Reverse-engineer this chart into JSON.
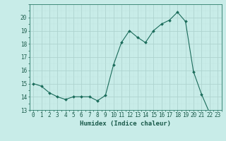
{
  "x": [
    0,
    1,
    2,
    3,
    4,
    5,
    6,
    7,
    8,
    9,
    10,
    11,
    12,
    13,
    14,
    15,
    16,
    17,
    18,
    19,
    20,
    21,
    22,
    23
  ],
  "y": [
    15.0,
    14.8,
    14.3,
    14.0,
    13.8,
    14.0,
    14.0,
    14.0,
    13.7,
    14.1,
    16.4,
    18.1,
    19.0,
    18.5,
    18.1,
    19.0,
    19.5,
    19.8,
    20.4,
    19.7,
    15.9,
    14.2,
    12.8,
    12.8
  ],
  "line_color": "#1a6b5a",
  "marker": "D",
  "marker_size": 2.0,
  "bg_color": "#c8ece8",
  "grid_major_color": "#aed4cf",
  "grid_minor_color": "#c0e4e0",
  "axis_color": "#2a7a68",
  "tick_color": "#1a5a4a",
  "xlabel": "Humidex (Indice chaleur)",
  "ylim": [
    13,
    21
  ],
  "yticks": [
    13,
    14,
    15,
    16,
    17,
    18,
    19,
    20
  ],
  "xlim": [
    -0.5,
    23.5
  ],
  "font_size": 5.5
}
